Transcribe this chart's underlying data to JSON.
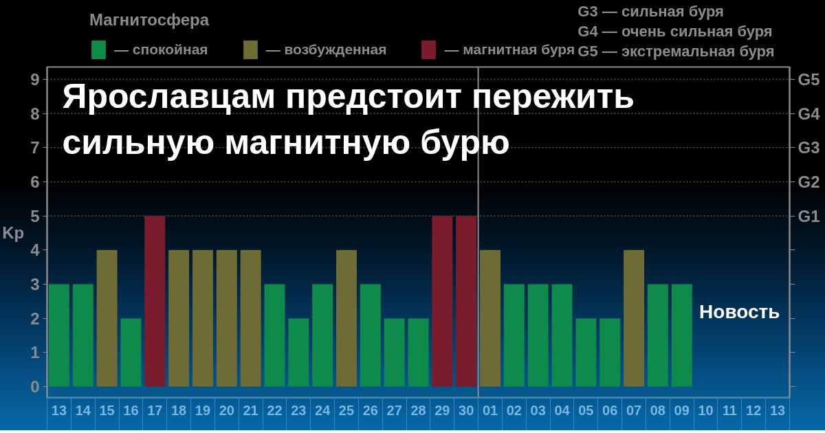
{
  "chart_data": {
    "type": "bar",
    "title": "Ярославцам предстоит пережить сильную магнитную бурю",
    "ylabel": "Kp",
    "legend_title": "Магнитосфера",
    "legend": "top left",
    "categories": [
      "13",
      "14",
      "15",
      "16",
      "17",
      "18",
      "19",
      "20",
      "21",
      "22",
      "23",
      "24",
      "25",
      "26",
      "27",
      "28",
      "29",
      "30",
      "01",
      "02",
      "03",
      "04",
      "05",
      "06",
      "07",
      "08",
      "09",
      "10",
      "11",
      "12",
      "13"
    ],
    "series": [
      {
        "name": "— спокойная",
        "color": "#0e8a4a",
        "values": [
          3,
          3,
          null,
          2,
          null,
          null,
          null,
          null,
          null,
          3,
          2,
          3,
          null,
          3,
          2,
          2,
          null,
          null,
          null,
          3,
          3,
          3,
          2,
          2,
          null,
          3,
          3,
          null,
          null,
          null,
          null
        ]
      },
      {
        "name": "— возбужденная",
        "color": "#6e6b35",
        "values": [
          null,
          null,
          4,
          null,
          null,
          4,
          4,
          4,
          4,
          null,
          null,
          null,
          4,
          null,
          null,
          null,
          null,
          null,
          4,
          null,
          null,
          null,
          null,
          null,
          4,
          null,
          null,
          null,
          null,
          null,
          null
        ]
      },
      {
        "name": "— магнитная буря",
        "color": "#7a1c2c",
        "values": [
          null,
          null,
          null,
          null,
          5,
          null,
          null,
          null,
          null,
          null,
          null,
          null,
          null,
          null,
          null,
          null,
          5,
          5,
          null,
          null,
          null,
          null,
          null,
          null,
          null,
          null,
          null,
          null,
          null,
          null,
          null
        ]
      }
    ],
    "ylim": [
      -0.32,
      9.36
    ],
    "yticks": [
      0,
      1,
      2,
      3,
      4,
      5,
      6,
      7,
      8,
      9
    ],
    "ref_lines": [
      {
        "axis": "y",
        "value": 5,
        "label": "G1",
        "line_style": "dotted",
        "color": "#5a5a5a"
      },
      {
        "axis": "y",
        "value": 6,
        "label": "G2",
        "line_style": "dotted",
        "color": "#5a5a5a"
      },
      {
        "axis": "y",
        "value": 7,
        "label": "G3",
        "line_style": "dotted",
        "color": "#5a5a5a"
      },
      {
        "axis": "y",
        "value": 8,
        "label": "G4",
        "line_style": "dotted",
        "color": "#5a5a5a"
      },
      {
        "axis": "y",
        "value": 9,
        "label": "G5",
        "line_style": "dotted",
        "color": "#5a5a5a"
      },
      {
        "axis": "x",
        "value": "01",
        "line_style": "solid",
        "color": "#8c8c8c"
      }
    ],
    "annotations": [
      "G3 — сильная буря",
      "G4 — очень сильная буря",
      "G5 — экстремальная буря",
      "Новость"
    ]
  }
}
